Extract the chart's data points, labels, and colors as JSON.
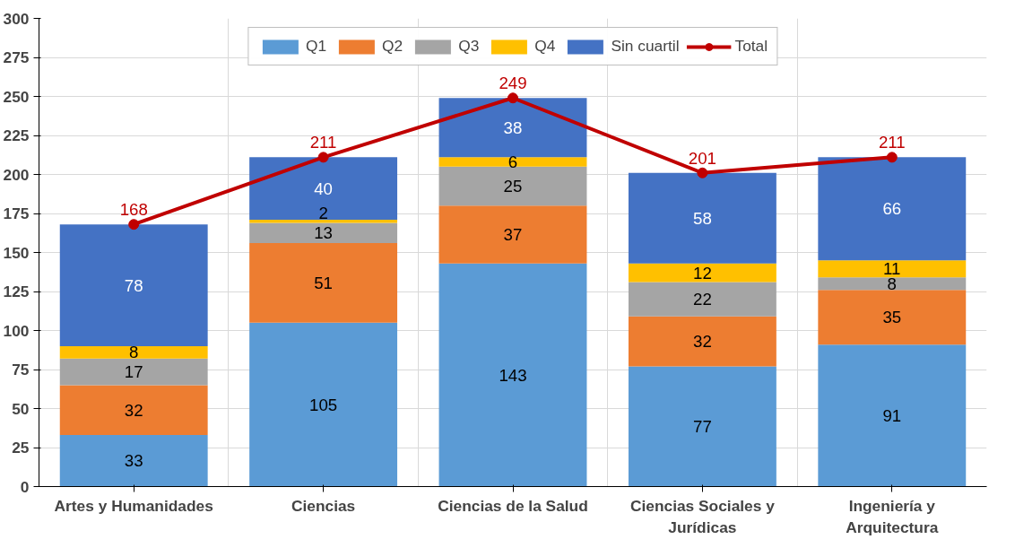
{
  "chart_data": {
    "type": "bar",
    "stacked": true,
    "categories": [
      "Artes y Humanidades",
      "Ciencias",
      "Ciencias de la Salud",
      "Ciencias Sociales y Jurídicas",
      "Ingeniería y Arquitectura"
    ],
    "series": [
      {
        "name": "Q1",
        "color": "#5b9bd5",
        "values": [
          33,
          105,
          143,
          77,
          91
        ]
      },
      {
        "name": "Q2",
        "color": "#ed7d31",
        "values": [
          32,
          51,
          37,
          32,
          35
        ]
      },
      {
        "name": "Q3",
        "color": "#a5a5a5",
        "values": [
          17,
          13,
          25,
          22,
          8
        ]
      },
      {
        "name": "Q4",
        "color": "#ffc000",
        "values": [
          8,
          2,
          6,
          12,
          11
        ]
      },
      {
        "name": "Sin cuartil",
        "color": "#4472c4",
        "values": [
          78,
          40,
          38,
          58,
          66
        ]
      },
      {
        "name": "Total",
        "color": "#c00000",
        "type": "line",
        "marker": "circle",
        "values": [
          168,
          211,
          249,
          201,
          211
        ]
      }
    ],
    "ylim": [
      0,
      300
    ],
    "yticks": [
      0,
      25,
      50,
      75,
      100,
      125,
      150,
      175,
      200,
      225,
      250,
      275,
      300
    ],
    "grid": true,
    "legend": "top",
    "data_labels": true
  }
}
